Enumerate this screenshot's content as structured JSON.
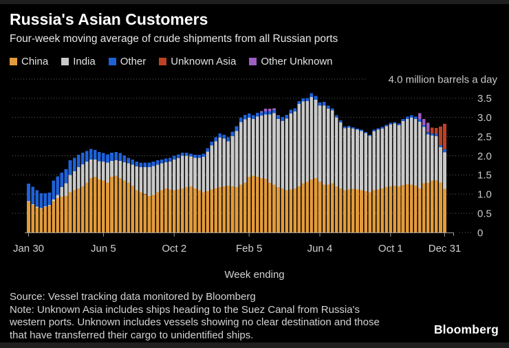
{
  "header": {
    "title": "Russia's Asian Customers",
    "subtitle": "Four-week moving average of crude shipments from all Russian ports"
  },
  "legend": [
    {
      "label": "China",
      "color": "#e29b3b"
    },
    {
      "label": "India",
      "color": "#c9c9c9"
    },
    {
      "label": "Other",
      "color": "#1f62d8"
    },
    {
      "label": "Unknown Asia",
      "color": "#bf4123"
    },
    {
      "label": "Other Unknown",
      "color": "#9d5fc4"
    }
  ],
  "footer": {
    "source": "Source: Vessel tracking data monitored by Bloomberg",
    "note_lines": [
      "Note: Unknown Asia includes ships heading to the Suez Canal from Russia's",
      "western ports. Unknown includes vessels showing no clear destination and those",
      "that have transferred their cargo to unidentified ships."
    ],
    "logo": "Bloomberg"
  },
  "chart_data": {
    "type": "bar",
    "stacked": true,
    "title": "Russia's Asian Customers",
    "subtitle": "Four-week moving average of crude shipments from all Russian ports",
    "unit": "million barrels a day",
    "ylim": [
      0,
      4.0
    ],
    "y_top_label": "4.0 million barrels a day",
    "y_tick_values": [
      0,
      0.5,
      1.0,
      1.5,
      2.0,
      2.5,
      3.0,
      3.5
    ],
    "y_tick_labels": [
      "0",
      "0.5",
      "1.0",
      "1.5",
      "2.0",
      "2.5",
      "3.0",
      "3.5"
    ],
    "xlabel": "Week ending",
    "x_tick_labels": [
      "Jan 30",
      "Jun 5",
      "Oct 2",
      "Feb 5",
      "Jun 4",
      "Oct 1",
      "Dec 31"
    ],
    "x_tick_indices": [
      0,
      18,
      35,
      53,
      70,
      87,
      100
    ],
    "x_range_weeks": 101,
    "grid": "dotted-horizontal",
    "legend_position": "top",
    "series": [
      {
        "name": "China",
        "color": "#e29b3b",
        "values": [
          0.8,
          0.72,
          0.65,
          0.62,
          0.66,
          0.7,
          0.82,
          0.9,
          0.93,
          0.95,
          1.05,
          1.1,
          1.15,
          1.2,
          1.3,
          1.42,
          1.45,
          1.38,
          1.35,
          1.3,
          1.45,
          1.48,
          1.42,
          1.35,
          1.3,
          1.22,
          1.1,
          1.05,
          1.0,
          0.95,
          0.98,
          1.05,
          1.1,
          1.15,
          1.12,
          1.1,
          1.12,
          1.15,
          1.18,
          1.2,
          1.15,
          1.1,
          1.05,
          1.08,
          1.12,
          1.15,
          1.18,
          1.2,
          1.22,
          1.2,
          1.18,
          1.25,
          1.3,
          1.45,
          1.48,
          1.45,
          1.42,
          1.4,
          1.3,
          1.25,
          1.18,
          1.15,
          1.1,
          1.12,
          1.15,
          1.2,
          1.28,
          1.32,
          1.38,
          1.42,
          1.33,
          1.25,
          1.25,
          1.28,
          1.2,
          1.15,
          1.1,
          1.12,
          1.14,
          1.12,
          1.1,
          1.08,
          1.05,
          1.1,
          1.12,
          1.15,
          1.18,
          1.2,
          1.22,
          1.2,
          1.24,
          1.26,
          1.25,
          1.22,
          1.15,
          1.28,
          1.29,
          1.35,
          1.36,
          1.3,
          1.14
        ]
      },
      {
        "name": "India",
        "color": "#c9c9c9",
        "values": [
          0.02,
          0.02,
          0.02,
          0.02,
          0.02,
          0.02,
          0.04,
          0.08,
          0.25,
          0.33,
          0.45,
          0.5,
          0.55,
          0.58,
          0.55,
          0.48,
          0.45,
          0.48,
          0.5,
          0.52,
          0.42,
          0.4,
          0.45,
          0.48,
          0.5,
          0.55,
          0.62,
          0.65,
          0.7,
          0.75,
          0.75,
          0.72,
          0.7,
          0.68,
          0.73,
          0.8,
          0.82,
          0.85,
          0.82,
          0.78,
          0.8,
          0.85,
          0.92,
          1.03,
          1.15,
          1.23,
          1.3,
          1.25,
          1.16,
          1.31,
          1.47,
          1.63,
          1.65,
          1.55,
          1.48,
          1.57,
          1.63,
          1.68,
          1.78,
          1.86,
          1.78,
          1.76,
          1.87,
          1.98,
          2.01,
          2.15,
          2.14,
          2.11,
          2.15,
          2.04,
          1.98,
          2.06,
          1.98,
          1.9,
          1.8,
          1.72,
          1.62,
          1.62,
          1.57,
          1.56,
          1.55,
          1.51,
          1.47,
          1.54,
          1.56,
          1.56,
          1.59,
          1.62,
          1.62,
          1.6,
          1.67,
          1.7,
          1.75,
          1.74,
          1.74,
          1.47,
          1.27,
          1.18,
          1.15,
          0.92,
          0.95
        ]
      },
      {
        "name": "Other",
        "color": "#1f62d8",
        "values": [
          0.45,
          0.45,
          0.43,
          0.38,
          0.34,
          0.32,
          0.49,
          0.48,
          0.38,
          0.37,
          0.38,
          0.35,
          0.33,
          0.3,
          0.28,
          0.28,
          0.25,
          0.24,
          0.22,
          0.22,
          0.21,
          0.22,
          0.2,
          0.18,
          0.15,
          0.13,
          0.13,
          0.12,
          0.12,
          0.12,
          0.12,
          0.11,
          0.1,
          0.1,
          0.1,
          0.1,
          0.1,
          0.08,
          0.08,
          0.07,
          0.08,
          0.08,
          0.08,
          0.09,
          0.1,
          0.1,
          0.1,
          0.1,
          0.1,
          0.12,
          0.12,
          0.12,
          0.12,
          0.1,
          0.1,
          0.1,
          0.08,
          0.08,
          0.08,
          0.08,
          0.08,
          0.1,
          0.1,
          0.1,
          0.08,
          0.08,
          0.08,
          0.08,
          0.1,
          0.1,
          0.08,
          0.1,
          0.08,
          0.06,
          0.06,
          0.05,
          0.04,
          0.04,
          0.03,
          0.03,
          0.03,
          0.03,
          0.03,
          0.04,
          0.04,
          0.04,
          0.04,
          0.04,
          0.04,
          0.04,
          0.05,
          0.06,
          0.06,
          0.06,
          0.06,
          0.05,
          0.06,
          0.05,
          0.06,
          0.06,
          0.08
        ]
      },
      {
        "name": "Unknown Asia",
        "color": "#bf4123",
        "values": [
          0,
          0,
          0,
          0,
          0,
          0,
          0,
          0,
          0,
          0,
          0,
          0,
          0,
          0,
          0,
          0,
          0,
          0,
          0,
          0,
          0,
          0,
          0,
          0,
          0,
          0,
          0,
          0,
          0,
          0,
          0,
          0,
          0,
          0,
          0,
          0,
          0,
          0,
          0,
          0,
          0,
          0,
          0,
          0,
          0,
          0,
          0,
          0,
          0,
          0,
          0,
          0,
          0,
          0,
          0,
          0,
          0,
          0,
          0,
          0,
          0,
          0,
          0,
          0,
          0,
          0,
          0,
          0,
          0,
          0,
          0,
          0,
          0,
          0,
          0,
          0,
          0,
          0,
          0,
          0,
          0,
          0,
          0,
          0,
          0,
          0,
          0,
          0,
          0,
          0,
          0,
          0,
          0,
          0,
          0,
          0,
          0.02,
          0.16,
          0.16,
          0.48,
          0.66
        ]
      },
      {
        "name": "Other Unknown",
        "color": "#9d5fc4",
        "values": [
          0,
          0,
          0,
          0,
          0,
          0,
          0,
          0,
          0,
          0,
          0,
          0,
          0,
          0,
          0,
          0,
          0,
          0,
          0,
          0,
          0,
          0,
          0,
          0,
          0,
          0,
          0,
          0,
          0,
          0,
          0,
          0,
          0,
          0,
          0,
          0,
          0,
          0,
          0,
          0,
          0,
          0,
          0,
          0,
          0,
          0,
          0,
          0,
          0,
          0,
          0,
          0,
          0,
          0,
          0,
          0,
          0.04,
          0.07,
          0.07,
          0.05,
          0.02,
          0,
          0,
          0,
          0,
          0,
          0,
          0,
          0,
          0,
          0,
          0,
          0,
          0,
          0,
          0,
          0,
          0,
          0,
          0,
          0,
          0,
          0,
          0,
          0,
          0,
          0,
          0,
          0,
          0,
          0,
          0,
          0,
          0,
          0.16,
          0.16,
          0.22
        ]
      }
    ]
  }
}
